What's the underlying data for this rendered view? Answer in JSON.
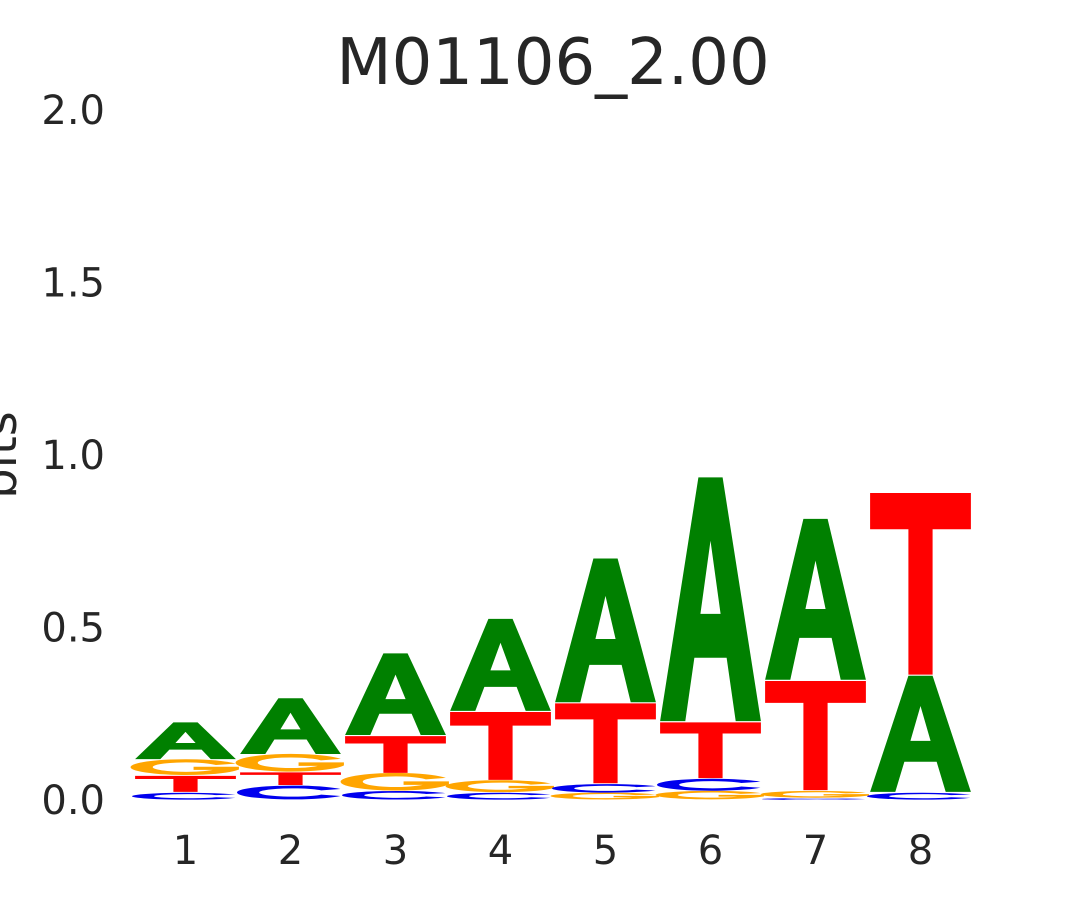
{
  "chart_data": {
    "type": "sequence-logo",
    "title": "M01106_2.00",
    "ylabel": "bits",
    "xlabel": "",
    "ylim": [
      0,
      2.0
    ],
    "yticks": [
      "0.0",
      "0.5",
      "1.0",
      "1.5",
      "2.0"
    ],
    "positions": [
      "1",
      "2",
      "3",
      "4",
      "5",
      "6",
      "7",
      "8"
    ],
    "colors": {
      "A": "#008000",
      "C": "#0000ee",
      "G": "#ffa500",
      "T": "#ff0000"
    },
    "stacks": [
      [
        {
          "letter": "C",
          "value": 0.02
        },
        {
          "letter": "T",
          "value": 0.05
        },
        {
          "letter": "G",
          "value": 0.045
        },
        {
          "letter": "A",
          "value": 0.11
        }
      ],
      [
        {
          "letter": "C",
          "value": 0.04
        },
        {
          "letter": "T",
          "value": 0.04
        },
        {
          "letter": "G",
          "value": 0.05
        },
        {
          "letter": "A",
          "value": 0.165
        }
      ],
      [
        {
          "letter": "C",
          "value": 0.025
        },
        {
          "letter": "G",
          "value": 0.05
        },
        {
          "letter": "T",
          "value": 0.11
        },
        {
          "letter": "A",
          "value": 0.24
        }
      ],
      [
        {
          "letter": "C",
          "value": 0.02
        },
        {
          "letter": "G",
          "value": 0.035
        },
        {
          "letter": "T",
          "value": 0.2
        },
        {
          "letter": "A",
          "value": 0.27
        }
      ],
      [
        {
          "letter": "G",
          "value": 0.02
        },
        {
          "letter": "C",
          "value": 0.025
        },
        {
          "letter": "T",
          "value": 0.235
        },
        {
          "letter": "A",
          "value": 0.42
        }
      ],
      [
        {
          "letter": "G",
          "value": 0.025
        },
        {
          "letter": "C",
          "value": 0.035
        },
        {
          "letter": "T",
          "value": 0.165
        },
        {
          "letter": "A",
          "value": 0.71
        }
      ],
      [
        {
          "letter": "C",
          "value": 0.005
        },
        {
          "letter": "G",
          "value": 0.02
        },
        {
          "letter": "T",
          "value": 0.32
        },
        {
          "letter": "A",
          "value": 0.47
        }
      ],
      [
        {
          "letter": "C",
          "value": 0.02
        },
        {
          "letter": "A",
          "value": 0.34
        },
        {
          "letter": "T",
          "value": 0.53
        }
      ]
    ]
  }
}
